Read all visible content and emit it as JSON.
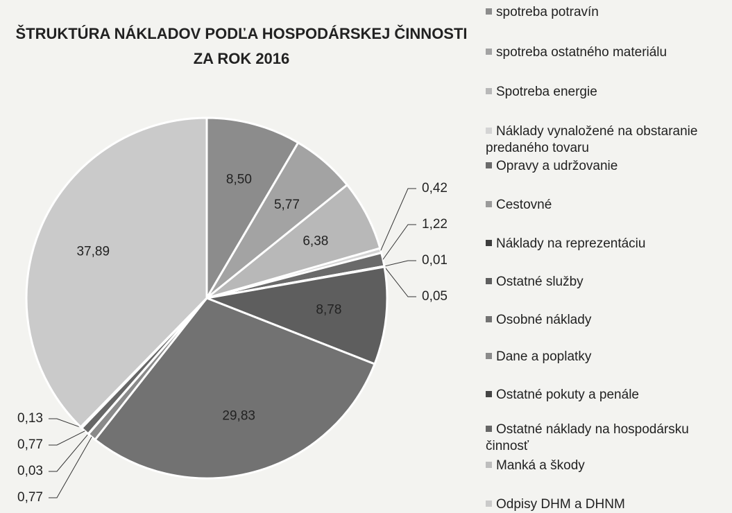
{
  "chart_data": {
    "type": "pie",
    "title": [
      "ŠTRUKTÚRA NÁKLADOV PODĽA HOSPODÁRSKEJ ČINNOSTI",
      "ZA ROK 2016"
    ],
    "categories": [
      "spotreba potravín",
      "spotreba ostatného materiálu",
      "Spotreba energie",
      "Náklady vynaložené na obstaranie predaného tovaru",
      "Opravy a udržovanie",
      "Cestovné",
      "Náklady na reprezentáciu",
      "Ostatné služby",
      "Osobné náklady",
      "Dane a poplatky",
      "Ostatné pokuty a penále",
      "Ostatné náklady na hospodársku činnosť",
      "Manká a škody",
      "Odpisy DHM a DHNM"
    ],
    "values": [
      8.5,
      5.77,
      6.38,
      0.42,
      1.22,
      0.01,
      0.05,
      8.78,
      29.83,
      0.77,
      0.03,
      0.77,
      0.13,
      37.89
    ],
    "value_labels": [
      "8,50",
      "5,77",
      "6,38",
      "0,42",
      "1,22",
      "0,01",
      "0,05",
      "8,78",
      "29,83",
      "0,77",
      "0,03",
      "0,77",
      "0,13",
      "37,89"
    ],
    "colors": [
      "#8c8c8c",
      "#a3a3a3",
      "#b8b8b8",
      "#d4d4d4",
      "#6a6a6a",
      "#9a9a9a",
      "#3c3c3c",
      "#5e5e5e",
      "#727272",
      "#8a8a8a",
      "#444444",
      "#666666",
      "#bdbdbd",
      "#cacaca"
    ]
  }
}
